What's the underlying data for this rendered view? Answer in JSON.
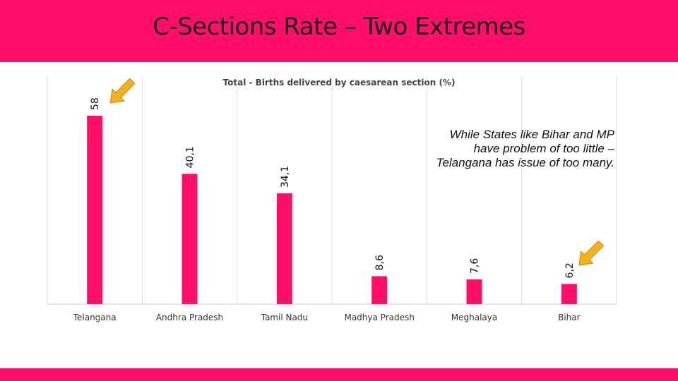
{
  "header": {
    "title": "C-Sections Rate – Two Extremes"
  },
  "note": "While States like Bihar and MP have problem of too little – Telangana has issue of too many.",
  "colors": {
    "bar": "#ff0f6a",
    "header": "#ff0f6a",
    "arrow": "#f5b21a",
    "grid": "#dddddd"
  },
  "chart_data": {
    "type": "bar",
    "title": "Total - Births delivered by caesarean section (%)",
    "categories": [
      "Telangana",
      "Andhra Pradesh",
      "Tamil Nadu",
      "Madhya Pradesh",
      "Meghalaya",
      "Bihar"
    ],
    "values": [
      58,
      40.1,
      34.1,
      8.6,
      7.6,
      6.2
    ],
    "data_labels": [
      "58",
      "40,1",
      "34,1",
      "8,6",
      "7,6",
      "6,2"
    ],
    "ylim": [
      0,
      58
    ],
    "grid": "vertical",
    "highlighted": [
      "Telangana",
      "Bihar"
    ]
  }
}
